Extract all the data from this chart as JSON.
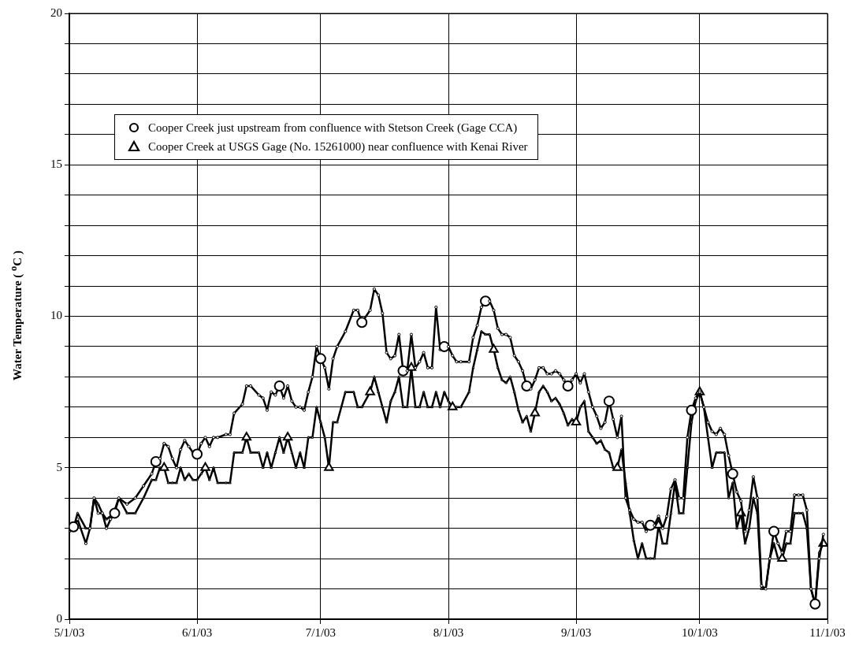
{
  "chart_data": {
    "type": "line",
    "ylabel": "Water Temperature ( $^{o}$C )",
    "x": [
      "2003-05-01",
      "2003-05-02",
      "2003-05-03",
      "2003-05-05",
      "2003-05-06",
      "2003-05-07",
      "2003-05-08",
      "2003-05-09",
      "2003-05-10",
      "2003-05-11",
      "2003-05-12",
      "2003-05-13",
      "2003-05-15",
      "2003-05-17",
      "2003-05-19",
      "2003-05-21",
      "2003-05-22",
      "2003-05-23",
      "2003-05-24",
      "2003-05-25",
      "2003-05-26",
      "2003-05-27",
      "2003-05-28",
      "2003-05-29",
      "2003-05-30",
      "2003-05-31",
      "2003-06-01",
      "2003-06-02",
      "2003-06-03",
      "2003-06-04",
      "2003-06-05",
      "2003-06-06",
      "2003-06-08",
      "2003-06-09",
      "2003-06-10",
      "2003-06-12",
      "2003-06-13",
      "2003-06-14",
      "2003-06-16",
      "2003-06-17",
      "2003-06-18",
      "2003-06-19",
      "2003-06-20",
      "2003-06-21",
      "2003-06-22",
      "2003-06-23",
      "2003-06-24",
      "2003-06-25",
      "2003-06-26",
      "2003-06-27",
      "2003-06-28",
      "2003-06-29",
      "2003-06-30",
      "2003-07-01",
      "2003-07-02",
      "2003-07-03",
      "2003-07-04",
      "2003-07-05",
      "2003-07-07",
      "2003-07-09",
      "2003-07-10",
      "2003-07-11",
      "2003-07-13",
      "2003-07-14",
      "2003-07-15",
      "2003-07-16",
      "2003-07-17",
      "2003-07-18",
      "2003-07-19",
      "2003-07-20",
      "2003-07-21",
      "2003-07-22",
      "2003-07-23",
      "2003-07-24",
      "2003-07-25",
      "2003-07-26",
      "2003-07-27",
      "2003-07-28",
      "2003-07-29",
      "2003-07-30",
      "2003-07-31",
      "2003-08-01",
      "2003-08-02",
      "2003-08-03",
      "2003-08-04",
      "2003-08-06",
      "2003-08-07",
      "2003-08-08",
      "2003-08-09",
      "2003-08-10",
      "2003-08-11",
      "2003-08-12",
      "2003-08-13",
      "2003-08-14",
      "2003-08-15",
      "2003-08-16",
      "2003-08-17",
      "2003-08-18",
      "2003-08-19",
      "2003-08-20",
      "2003-08-21",
      "2003-08-22",
      "2003-08-23",
      "2003-08-24",
      "2003-08-25",
      "2003-08-26",
      "2003-08-27",
      "2003-08-28",
      "2003-08-29",
      "2003-08-30",
      "2003-08-31",
      "2003-09-01",
      "2003-09-02",
      "2003-09-03",
      "2003-09-04",
      "2003-09-05",
      "2003-09-06",
      "2003-09-07",
      "2003-09-08",
      "2003-09-09",
      "2003-09-10",
      "2003-09-11",
      "2003-09-12",
      "2003-09-13",
      "2003-09-14",
      "2003-09-15",
      "2003-09-16",
      "2003-09-17",
      "2003-09-18",
      "2003-09-19",
      "2003-09-20",
      "2003-09-21",
      "2003-09-22",
      "2003-09-23",
      "2003-09-24",
      "2003-09-25",
      "2003-09-26",
      "2003-09-27",
      "2003-09-28",
      "2003-09-29",
      "2003-09-30",
      "2003-10-01",
      "2003-10-02",
      "2003-10-03",
      "2003-10-04",
      "2003-10-05",
      "2003-10-06",
      "2003-10-07",
      "2003-10-08",
      "2003-10-09",
      "2003-10-10",
      "2003-10-11",
      "2003-10-12",
      "2003-10-13",
      "2003-10-14",
      "2003-10-15",
      "2003-10-16",
      "2003-10-17",
      "2003-10-18",
      "2003-10-19",
      "2003-10-20",
      "2003-10-21",
      "2003-10-22",
      "2003-10-23",
      "2003-10-24",
      "2003-10-25",
      "2003-10-26",
      "2003-10-27",
      "2003-10-28",
      "2003-10-29",
      "2003-10-30",
      "2003-10-31"
    ],
    "series": [
      {
        "name": "Cooper Creek just upstream from confluence with Stetson Creek (Gage CCA)",
        "color": "#000000",
        "marker": "circle",
        "values": [
          2.9,
          3.05,
          3.3,
          2.5,
          3.0,
          4.0,
          3.5,
          3.5,
          3.0,
          3.3,
          3.5,
          4.0,
          3.8,
          4.0,
          4.4,
          4.8,
          5.2,
          5.3,
          5.8,
          5.7,
          5.3,
          5.0,
          5.6,
          5.9,
          5.7,
          5.5,
          5.45,
          5.8,
          6.0,
          5.7,
          6.0,
          6.0,
          6.1,
          6.1,
          6.8,
          7.1,
          7.7,
          7.7,
          7.4,
          7.3,
          6.9,
          7.5,
          7.4,
          7.7,
          7.3,
          7.7,
          7.2,
          7.0,
          7.0,
          6.9,
          7.5,
          8.0,
          9.0,
          8.6,
          8.3,
          7.6,
          8.6,
          9.0,
          9.5,
          10.2,
          10.2,
          9.8,
          10.2,
          10.9,
          10.7,
          10.1,
          8.8,
          8.6,
          8.7,
          9.4,
          8.2,
          8.2,
          9.4,
          8.3,
          8.5,
          8.8,
          8.3,
          8.3,
          10.3,
          8.9,
          9.0,
          9.0,
          8.7,
          8.5,
          8.5,
          8.5,
          9.3,
          9.7,
          10.3,
          10.5,
          10.5,
          10.2,
          9.6,
          9.4,
          9.4,
          9.3,
          8.7,
          8.5,
          8.2,
          7.7,
          7.6,
          7.9,
          8.3,
          8.3,
          8.1,
          8.1,
          8.2,
          8.1,
          7.9,
          7.7,
          7.9,
          8.1,
          7.8,
          8.1,
          7.5,
          7.0,
          6.7,
          6.3,
          6.5,
          7.2,
          6.6,
          6.0,
          6.7,
          4.0,
          3.6,
          3.3,
          3.2,
          3.2,
          2.9,
          3.1,
          3.1,
          3.4,
          3.0,
          3.4,
          4.3,
          4.6,
          4.0,
          4.0,
          6.0,
          6.9,
          7.3,
          7.5,
          7.0,
          6.5,
          6.2,
          6.1,
          6.3,
          6.1,
          5.4,
          4.8,
          4.2,
          3.9,
          2.9,
          3.6,
          4.7,
          4.0,
          1.1,
          1.0,
          2.0,
          2.9,
          2.5,
          2.2,
          2.9,
          2.9,
          4.1,
          4.1,
          4.1,
          3.6,
          1.0,
          0.5,
          2.0,
          2.8
        ]
      },
      {
        "name": "Cooper Creek at USGS Gage (No. 15261000) near confluence with Kenai River",
        "color": "#000000",
        "marker": "triangle",
        "values": [
          2.9,
          3.0,
          3.5,
          3.0,
          3.0,
          4.0,
          3.8,
          3.5,
          3.3,
          3.4,
          3.6,
          4.0,
          3.5,
          3.5,
          4.0,
          4.6,
          4.6,
          5.0,
          5.0,
          4.5,
          4.5,
          4.5,
          5.0,
          4.6,
          4.8,
          4.6,
          4.6,
          4.8,
          5.0,
          4.6,
          5.0,
          4.5,
          4.5,
          4.5,
          5.5,
          5.5,
          6.0,
          5.5,
          5.5,
          5.0,
          5.5,
          5.0,
          5.5,
          6.0,
          5.5,
          6.0,
          5.5,
          5.0,
          5.5,
          5.0,
          6.0,
          6.0,
          7.0,
          6.5,
          6.0,
          5.0,
          6.5,
          6.5,
          7.5,
          7.5,
          7.0,
          7.0,
          7.5,
          8.0,
          7.5,
          7.0,
          6.5,
          7.2,
          7.5,
          8.0,
          7.0,
          7.0,
          8.3,
          7.0,
          7.0,
          7.5,
          7.0,
          7.0,
          7.5,
          7.0,
          7.5,
          7.2,
          7.0,
          7.0,
          7.0,
          7.5,
          8.3,
          8.9,
          9.5,
          9.4,
          9.4,
          8.9,
          8.3,
          7.9,
          7.8,
          8.0,
          7.5,
          6.9,
          6.5,
          6.7,
          6.2,
          6.8,
          7.5,
          7.7,
          7.5,
          7.2,
          7.3,
          7.1,
          6.8,
          6.4,
          6.6,
          6.5,
          7.0,
          7.2,
          6.2,
          6.0,
          5.8,
          5.9,
          5.6,
          5.5,
          5.0,
          5.0,
          5.6,
          4.5,
          3.5,
          2.6,
          2.0,
          2.5,
          2.0,
          2.0,
          2.0,
          3.1,
          2.5,
          2.5,
          3.5,
          4.5,
          3.5,
          3.5,
          5.0,
          6.5,
          7.2,
          7.5,
          7.0,
          6.0,
          5.0,
          5.5,
          5.5,
          5.5,
          4.0,
          4.5,
          3.0,
          3.5,
          2.5,
          3.0,
          4.0,
          3.5,
          1.0,
          1.0,
          2.0,
          2.5,
          2.0,
          2.0,
          2.5,
          2.5,
          3.5,
          3.5,
          3.5,
          3.0,
          1.0,
          0.5,
          2.2,
          2.5
        ]
      }
    ],
    "xlim": [
      "2003-05-01",
      "2003-11-01"
    ],
    "xticks": [
      {
        "value": "2003-05-01",
        "label": "5/1/03"
      },
      {
        "value": "2003-06-01",
        "label": "6/1/03"
      },
      {
        "value": "2003-07-01",
        "label": "7/1/03"
      },
      {
        "value": "2003-08-01",
        "label": "8/1/03"
      },
      {
        "value": "2003-09-01",
        "label": "9/1/03"
      },
      {
        "value": "2003-10-01",
        "label": "10/1/03"
      },
      {
        "value": "2003-11-01",
        "label": "11/1/03"
      }
    ],
    "ylim": [
      0,
      20
    ],
    "yticks": [
      0,
      {
        "value": 1,
        "label": null
      },
      {
        "value": 2,
        "label": null
      },
      {
        "value": 3,
        "label": null
      },
      {
        "value": 4,
        "label": null
      },
      5,
      {
        "value": 6,
        "label": null
      },
      {
        "value": 7,
        "label": null
      },
      {
        "value": 8,
        "label": null
      },
      {
        "value": 9,
        "label": null
      },
      10,
      {
        "value": 11,
        "label": null
      },
      {
        "value": 12,
        "label": null
      },
      {
        "value": 13,
        "label": null
      },
      {
        "value": 14,
        "label": null
      },
      15,
      {
        "value": 16,
        "label": null
      },
      {
        "value": 17,
        "label": null
      },
      {
        "value": 18,
        "label": null
      },
      {
        "value": 19,
        "label": null
      },
      20
    ],
    "grid": true,
    "legend": "top left",
    "line_style": "solid"
  }
}
